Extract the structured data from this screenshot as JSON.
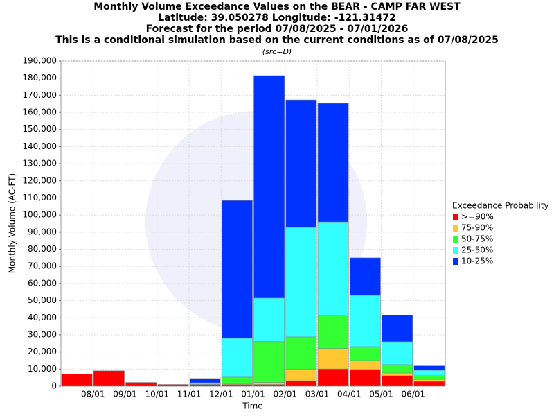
{
  "chart_data": {
    "type": "stacked_bar",
    "title": [
      "Monthly Volume Exceedance Values on the BEAR - CAMP FAR WEST",
      "Latitude: 39.050278 Longitude: -121.31472",
      "Forecast for the period 07/08/2025 - 07/01/2026",
      "This is a conditional simulation based on the current conditions as of 07/08/2025"
    ],
    "subtitle": "(src=D)",
    "x_label": "Time",
    "y_label": "Monthly Volume (AC-FT)",
    "legend_title": "Exceedance Probability",
    "legend_position": "right",
    "grid": true,
    "categories": [
      null,
      "08/01",
      "09/01",
      "10/01",
      "11/01",
      "12/01",
      "01/01",
      "02/01",
      "03/01",
      "04/01",
      "05/01",
      "06/01"
    ],
    "series": [
      {
        "name": ">=90%",
        "color": "#ff0000",
        "values": [
          7000,
          9000,
          2200,
          1000,
          800,
          1000,
          1000,
          3200,
          10100,
          9700,
          6100,
          2800
        ]
      },
      {
        "name": "75-90%",
        "color": "#ffc832",
        "values": [
          0,
          0,
          0,
          0,
          100,
          500,
          1200,
          6800,
          11900,
          5300,
          1600,
          1200
        ]
      },
      {
        "name": "50-75%",
        "color": "#33ff33",
        "values": [
          0,
          0,
          0,
          0,
          300,
          3800,
          23800,
          18800,
          19500,
          8100,
          4900,
          2100
        ]
      },
      {
        "name": "25-50%",
        "color": "#33ffff",
        "values": [
          0,
          0,
          0,
          0,
          800,
          22700,
          25500,
          64000,
          54500,
          30000,
          13400,
          3200
        ]
      },
      {
        "name": "10-25%",
        "color": "#0033ff",
        "values": [
          0,
          0,
          0,
          0,
          2500,
          80500,
          130000,
          74500,
          69300,
          21900,
          15500,
          2600
        ]
      }
    ],
    "ylim": [
      0,
      190000
    ],
    "yticks": [
      0,
      {
        "value": 10000,
        "label": "10,000"
      },
      {
        "value": 20000,
        "label": "20,000"
      },
      {
        "value": 30000,
        "label": "30,000"
      },
      {
        "value": 40000,
        "label": "40,000"
      },
      {
        "value": 50000,
        "label": "50,000"
      },
      {
        "value": 60000,
        "label": "60,000"
      },
      {
        "value": 70000,
        "label": "70,000"
      },
      {
        "value": 80000,
        "label": "80,000"
      },
      {
        "value": 90000,
        "label": "90,000"
      },
      {
        "value": 100000,
        "label": "100,000"
      },
      {
        "value": 110000,
        "label": "110,000"
      },
      {
        "value": 120000,
        "label": "120,000"
      },
      {
        "value": 130000,
        "label": "130,000"
      },
      {
        "value": 140000,
        "label": "140,000"
      },
      {
        "value": 150000,
        "label": "150,000"
      },
      {
        "value": 160000,
        "label": "160,000"
      },
      {
        "value": 170000,
        "label": "170,000"
      },
      {
        "value": 180000,
        "label": "180,000"
      },
      {
        "value": 190000,
        "label": "190,000"
      }
    ]
  }
}
